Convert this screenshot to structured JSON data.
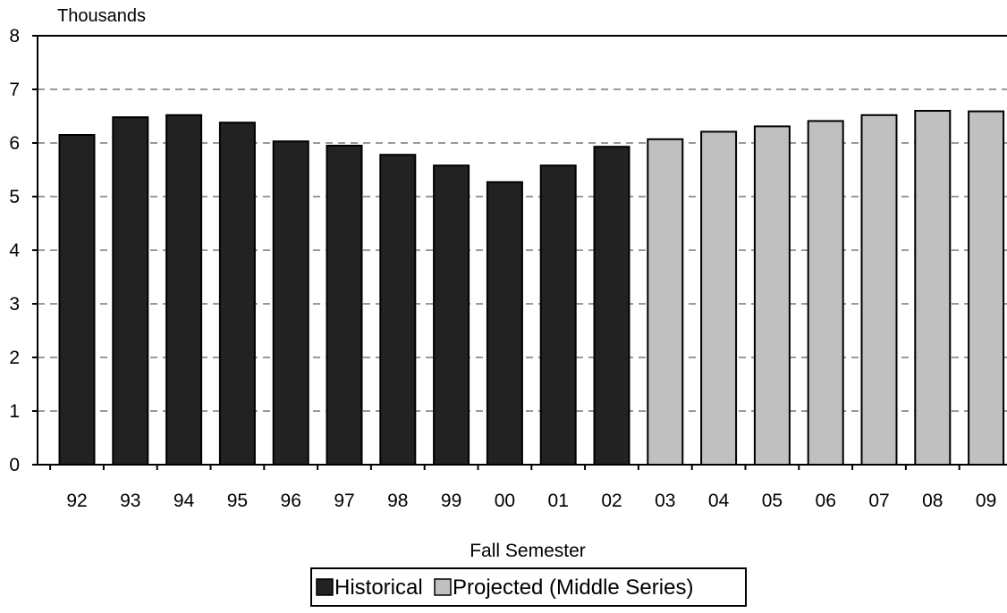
{
  "chart_data": {
    "type": "bar",
    "unit_label": "Thousands",
    "xlabel": "Fall Semester",
    "ylabel": "",
    "title": "",
    "ylim": [
      0,
      8
    ],
    "yticks": [
      "0",
      "1",
      "2",
      "3",
      "4",
      "5",
      "6",
      "7",
      "8"
    ],
    "grid": "horizontal dashed",
    "legend_position": "bottom-center",
    "categories": [
      "92",
      "93",
      "94",
      "95",
      "96",
      "97",
      "98",
      "99",
      "00",
      "01",
      "02",
      "03",
      "04",
      "05",
      "06",
      "07",
      "08",
      "09"
    ],
    "series": [
      {
        "name": "Historical",
        "color": "#222222",
        "values": [
          6.15,
          6.48,
          6.52,
          6.38,
          6.03,
          5.95,
          5.78,
          5.58,
          5.27,
          5.58,
          5.93,
          null,
          null,
          null,
          null,
          null,
          null,
          null
        ]
      },
      {
        "name": "Projected (Middle Series)",
        "color": "#c0c0c0",
        "values": [
          null,
          null,
          null,
          null,
          null,
          null,
          null,
          null,
          null,
          null,
          null,
          6.07,
          6.21,
          6.31,
          6.41,
          6.52,
          6.6,
          6.59
        ]
      }
    ]
  }
}
